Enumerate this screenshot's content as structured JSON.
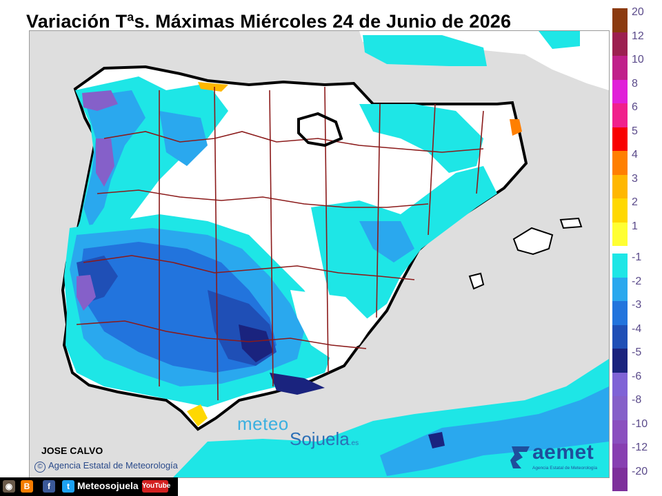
{
  "title": "Variación Tªs. Máximas Miércoles 24 de Junio de 2026",
  "legend": {
    "positive": [
      {
        "label": "20",
        "color": "#8b3a0f"
      },
      {
        "label": "12",
        "color": "#9c2050"
      },
      {
        "label": "10",
        "color": "#c0208a"
      },
      {
        "label": "8",
        "color": "#e020d8"
      },
      {
        "label": "6",
        "color": "#f0208c"
      },
      {
        "label": "5",
        "color": "#f80000"
      },
      {
        "label": "4",
        "color": "#ff7f00"
      },
      {
        "label": "3",
        "color": "#ffb700"
      },
      {
        "label": "2",
        "color": "#ffd800"
      },
      {
        "label": "1",
        "color": "#ffff33"
      }
    ],
    "negative": [
      {
        "label": "-1",
        "color": "#1ee6e6"
      },
      {
        "label": "-2",
        "color": "#2aa8ee"
      },
      {
        "label": "-3",
        "color": "#2274dd"
      },
      {
        "label": "-4",
        "color": "#1f4fb6"
      },
      {
        "label": "-5",
        "color": "#1a237e"
      },
      {
        "label": "-6",
        "color": "#7f63d6"
      },
      {
        "label": "-8",
        "color": "#8560c9"
      },
      {
        "label": "-10",
        "color": "#8a4fbf"
      },
      {
        "label": "-12",
        "color": "#873fb1"
      },
      {
        "label": "-20",
        "color": "#7d2f9b"
      }
    ]
  },
  "credits": {
    "author": "JOSE CALVO",
    "agency": "Agencia Estatal de Meteorología"
  },
  "watermark": {
    "line1": "meteo",
    "line2": "Sojuela",
    "tld": ".es"
  },
  "logo": {
    "name": "aemet",
    "full": "Agencia Estatal de Meteorología"
  },
  "social": {
    "name": "Meteosojuela",
    "youtube": "YouTube"
  },
  "colors": {
    "sea": "#dedede",
    "border": "#000000",
    "province_line": "#8b1a1a",
    "no_change": "#ffffff"
  }
}
